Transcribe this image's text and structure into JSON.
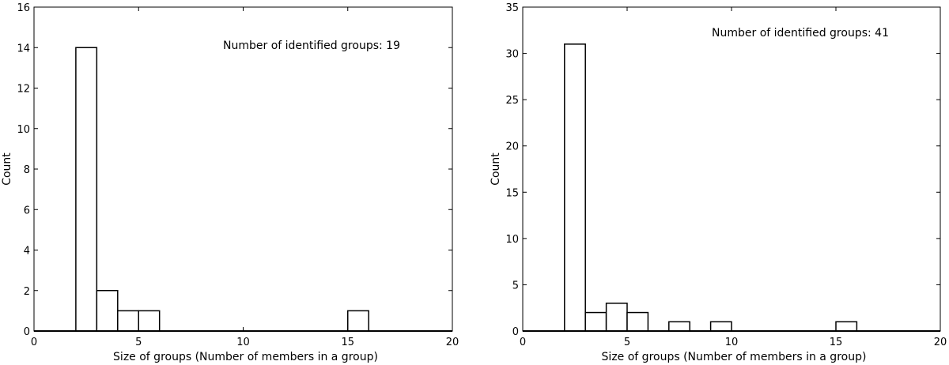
{
  "chart_data": [
    {
      "type": "histogram",
      "annotation": "Number of identified groups: 19",
      "xlabel": "Size of groups (Number of members in a group)",
      "ylabel": "Count",
      "xlim": [
        0,
        20
      ],
      "ylim": [
        0,
        16
      ],
      "xticks": [
        0,
        5,
        10,
        15,
        20
      ],
      "yticks": [
        0,
        2,
        4,
        6,
        8,
        10,
        12,
        14,
        16
      ],
      "bin_width": 1,
      "bins": [
        {
          "x0": 2,
          "x1": 3,
          "count": 14
        },
        {
          "x0": 3,
          "x1": 4,
          "count": 2
        },
        {
          "x0": 4,
          "x1": 5,
          "count": 1
        },
        {
          "x0": 5,
          "x1": 6,
          "count": 1
        },
        {
          "x0": 15,
          "x1": 16,
          "count": 1
        }
      ],
      "grid": false
    },
    {
      "type": "histogram",
      "annotation": "Number of identified groups: 41",
      "xlabel": "Size of groups (Number of members in a group)",
      "ylabel": "Count",
      "xlim": [
        0,
        20
      ],
      "ylim": [
        0,
        35
      ],
      "xticks": [
        0,
        5,
        10,
        15,
        20
      ],
      "yticks": [
        0,
        5,
        10,
        15,
        20,
        25,
        30,
        35
      ],
      "bin_width": 1,
      "bins": [
        {
          "x0": 2,
          "x1": 3,
          "count": 31
        },
        {
          "x0": 3,
          "x1": 4,
          "count": 2
        },
        {
          "x0": 4,
          "x1": 5,
          "count": 3
        },
        {
          "x0": 5,
          "x1": 6,
          "count": 2
        },
        {
          "x0": 7,
          "x1": 8,
          "count": 1
        },
        {
          "x0": 9,
          "x1": 10,
          "count": 1
        },
        {
          "x0": 15,
          "x1": 16,
          "count": 1
        }
      ],
      "grid": false
    }
  ]
}
